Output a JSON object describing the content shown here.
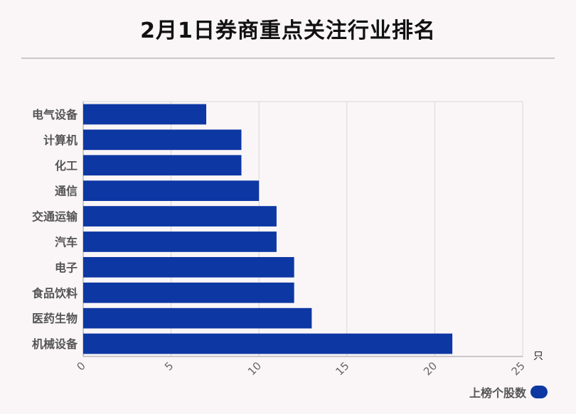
{
  "chart_data": {
    "type": "bar",
    "orientation": "horizontal",
    "title": "2月1日券商重点关注行业排名",
    "categories": [
      "电气设备",
      "计算机",
      "化工",
      "通信",
      "交通运输",
      "汽车",
      "电子",
      "食品饮料",
      "医药生物",
      "机械设备"
    ],
    "series": [
      {
        "name": "上榜个股数",
        "values": [
          7,
          9,
          9,
          10,
          11,
          11,
          12,
          12,
          13,
          21
        ]
      }
    ],
    "x_unit": "只",
    "xlim": [
      0,
      25
    ],
    "x_ticks": [
      0,
      5,
      10,
      15,
      20,
      25
    ],
    "grid": true,
    "legend_position": "bottom-right",
    "bar_color": "#0d37a3"
  }
}
